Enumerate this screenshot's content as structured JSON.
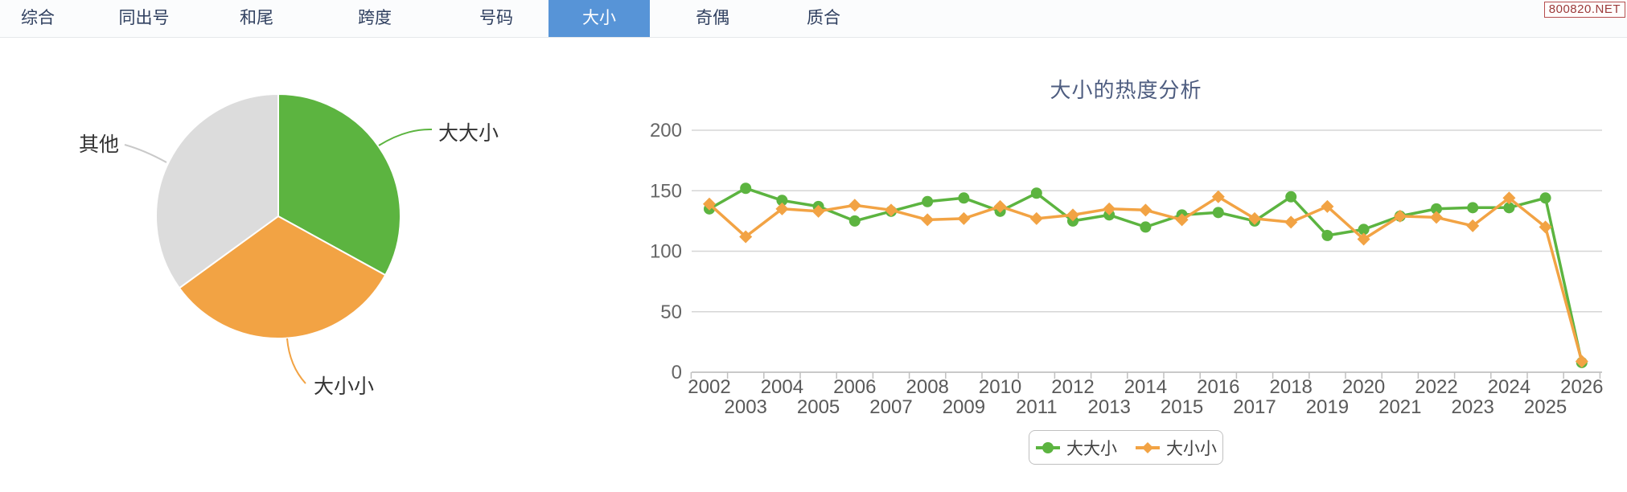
{
  "header": {
    "tabs": [
      {
        "label": "综合",
        "active": false
      },
      {
        "label": "同出号",
        "active": false
      },
      {
        "label": "和尾",
        "active": false
      },
      {
        "label": "跨度",
        "active": false
      },
      {
        "label": "号码",
        "active": false
      },
      {
        "label": "大小",
        "active": true
      },
      {
        "label": "奇偶",
        "active": false
      },
      {
        "label": "质合",
        "active": false
      }
    ],
    "badge": "800820.NET"
  },
  "pie_labels": {
    "other": "其他",
    "dadaxiao": "大大小",
    "daxiaoxiao": "大小小"
  },
  "colors": {
    "green": "#5cb440",
    "orange": "#f2a344",
    "gray": "#dcdcdc",
    "tab_active": "#5794d7",
    "title": "#4e5d80",
    "axis_text": "#666666",
    "gridline": "#d6d6d6",
    "axis_line": "#c9c9c9"
  },
  "chart_data": [
    {
      "type": "pie",
      "slices": [
        {
          "label": "大大小",
          "value": 33,
          "color": "#5cb440"
        },
        {
          "label": "大小小",
          "value": 32,
          "color": "#f2a344"
        },
        {
          "label": "其他",
          "value": 35,
          "color": "#dcdcdc"
        }
      ],
      "legend_position": "none"
    },
    {
      "type": "line",
      "title": "大小的热度分析",
      "x": [
        2002,
        2003,
        2004,
        2005,
        2006,
        2007,
        2008,
        2009,
        2010,
        2011,
        2012,
        2013,
        2014,
        2015,
        2016,
        2017,
        2018,
        2019,
        2020,
        2021,
        2022,
        2023,
        2024,
        2025,
        2026
      ],
      "yticks": [
        0,
        50,
        100,
        150,
        200
      ],
      "ylim": [
        0,
        200
      ],
      "grid": true,
      "legend_position": "bottom",
      "series": [
        {
          "name": "大大小",
          "color": "#5cb440",
          "marker": "circle",
          "values": [
            135,
            152,
            142,
            137,
            125,
            133,
            141,
            144,
            133,
            148,
            125,
            130,
            120,
            130,
            132,
            125,
            145,
            113,
            118,
            129,
            135,
            136,
            136,
            144,
            8
          ]
        },
        {
          "name": "大小小",
          "color": "#f2a344",
          "marker": "diamond",
          "values": [
            139,
            112,
            135,
            133,
            138,
            134,
            126,
            127,
            137,
            127,
            130,
            135,
            134,
            126,
            145,
            127,
            124,
            137,
            110,
            129,
            128,
            121,
            144,
            120,
            9
          ]
        }
      ]
    }
  ]
}
